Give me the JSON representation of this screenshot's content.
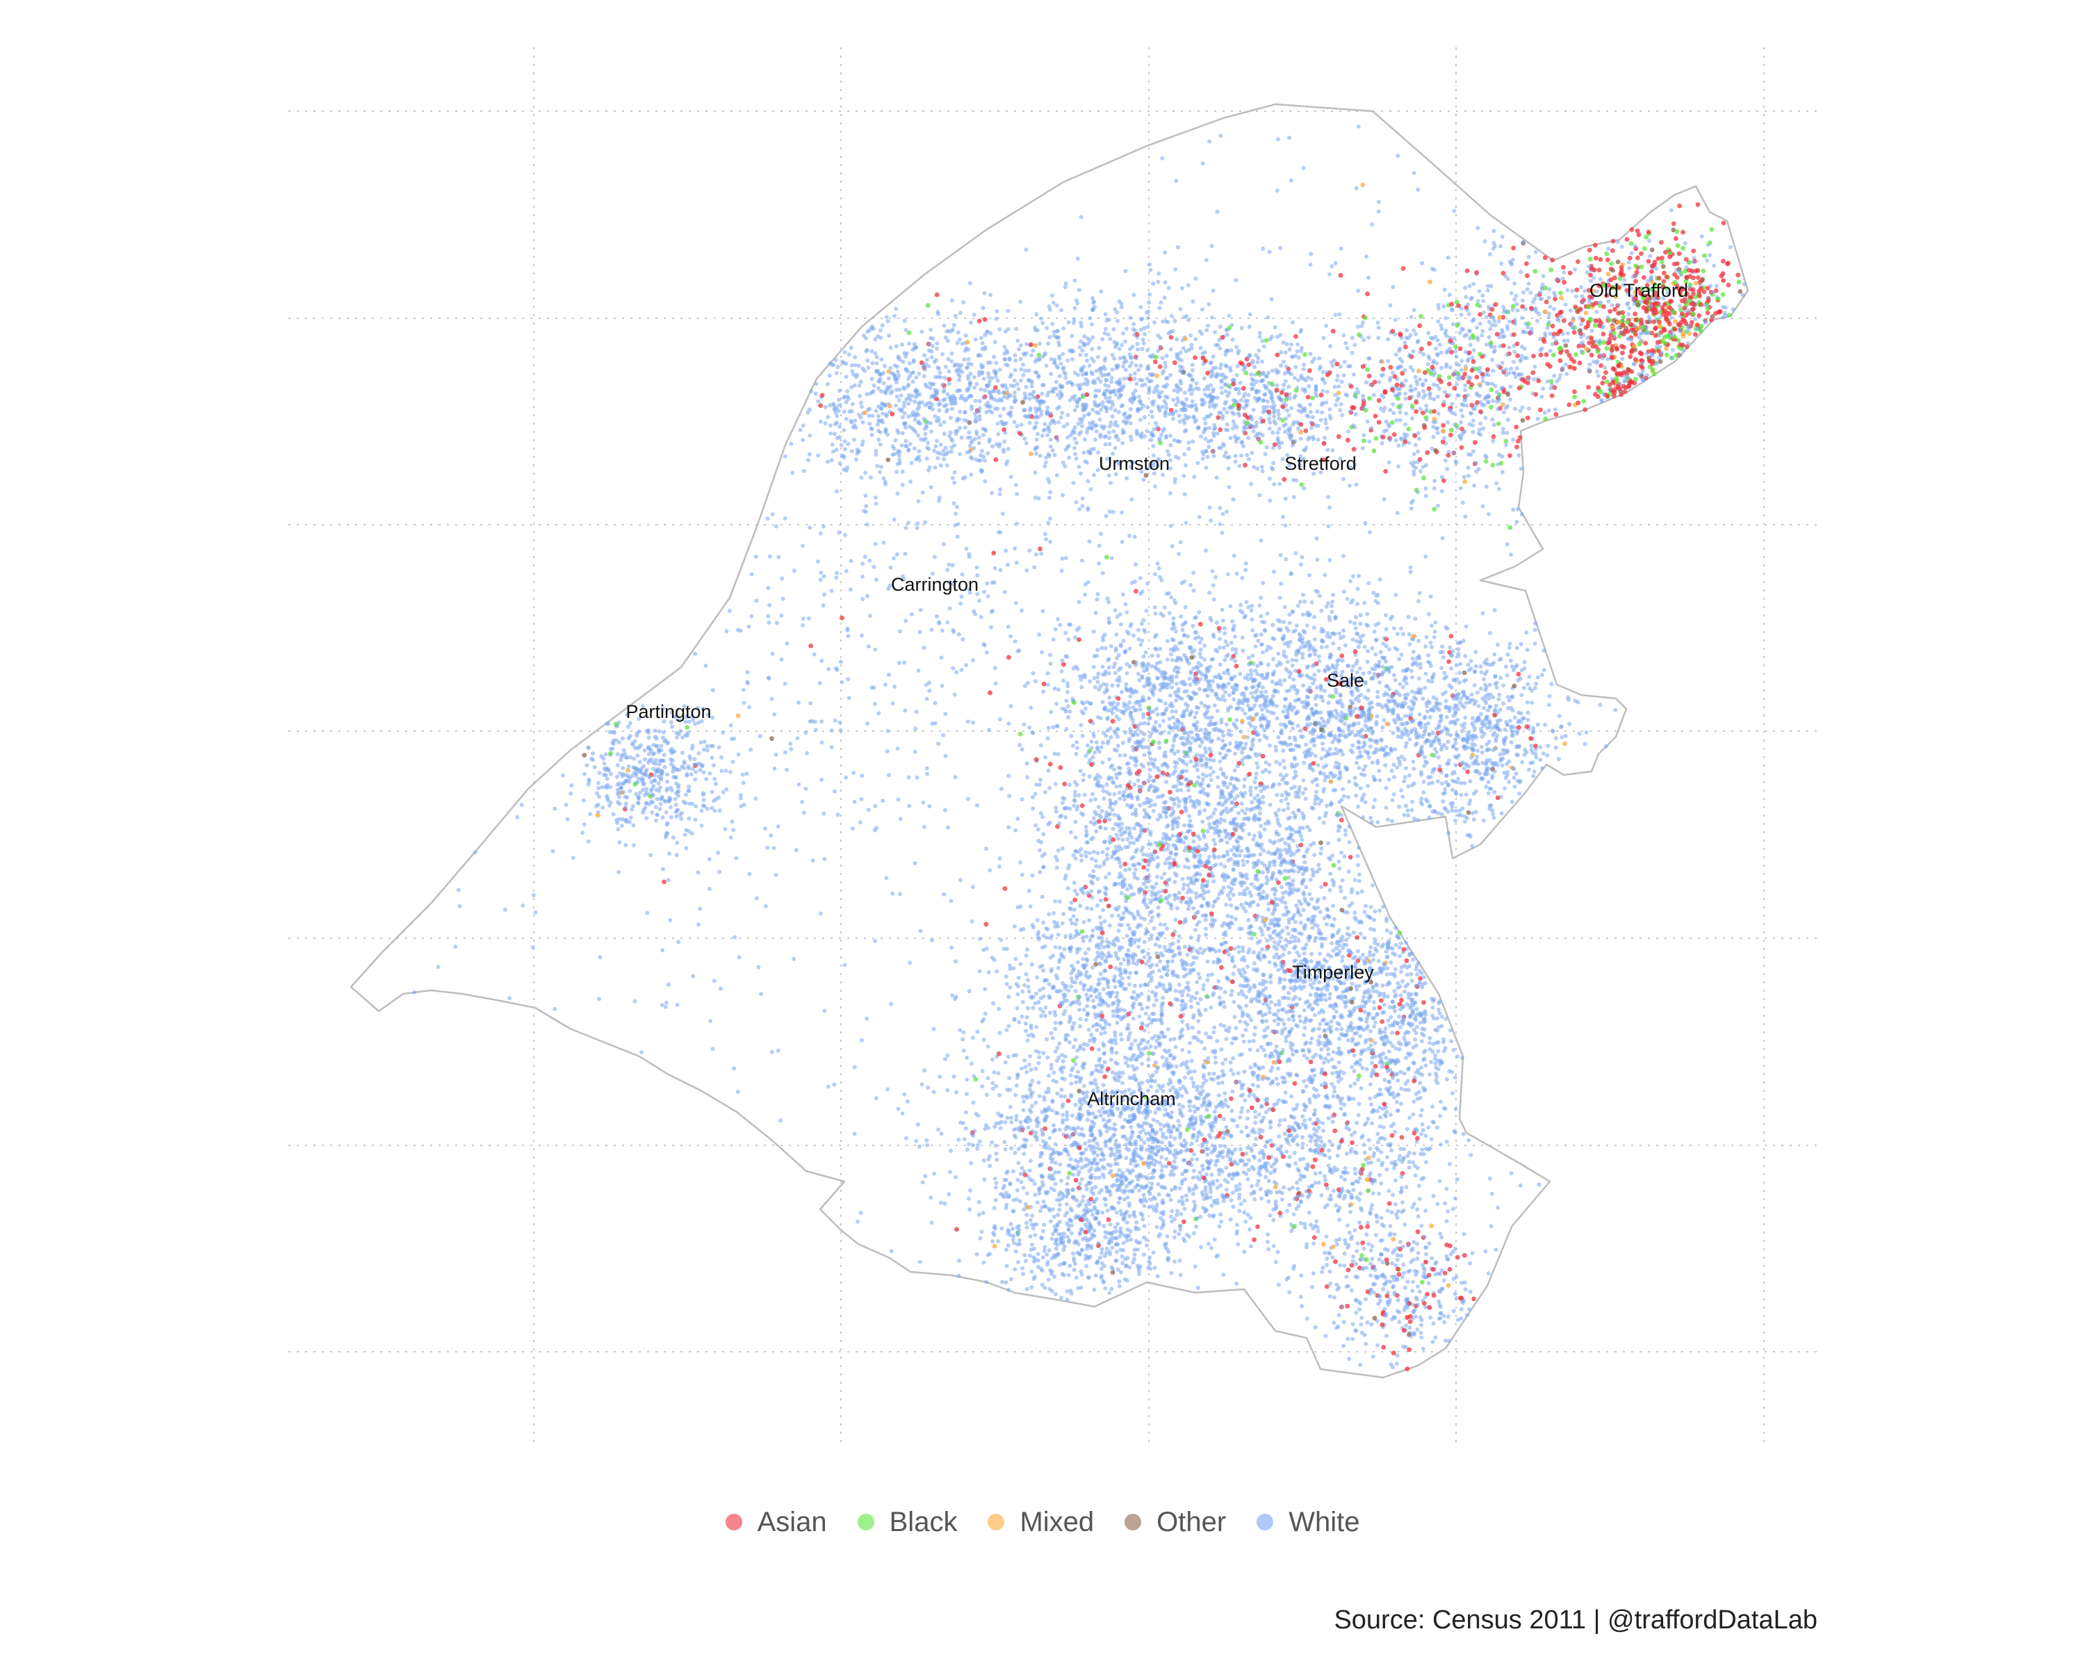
{
  "map": {
    "places": [
      {
        "name": "Old Trafford"
      },
      {
        "name": "Urmston"
      },
      {
        "name": "Stretford"
      },
      {
        "name": "Carrington"
      },
      {
        "name": "Partington"
      },
      {
        "name": "Sale"
      },
      {
        "name": "Timperley"
      },
      {
        "name": "Altrincham"
      }
    ],
    "legend": [
      {
        "label": "Asian",
        "color": "#f2323c"
      },
      {
        "label": "Black",
        "color": "#5ce63c"
      },
      {
        "label": "Mixed",
        "color": "#ffaa3c"
      },
      {
        "label": "Other",
        "color": "#8c6450"
      },
      {
        "label": "White",
        "color": "#78a5f0"
      }
    ],
    "source": "Source: Census 2011  |  @traffordDataLab"
  }
}
